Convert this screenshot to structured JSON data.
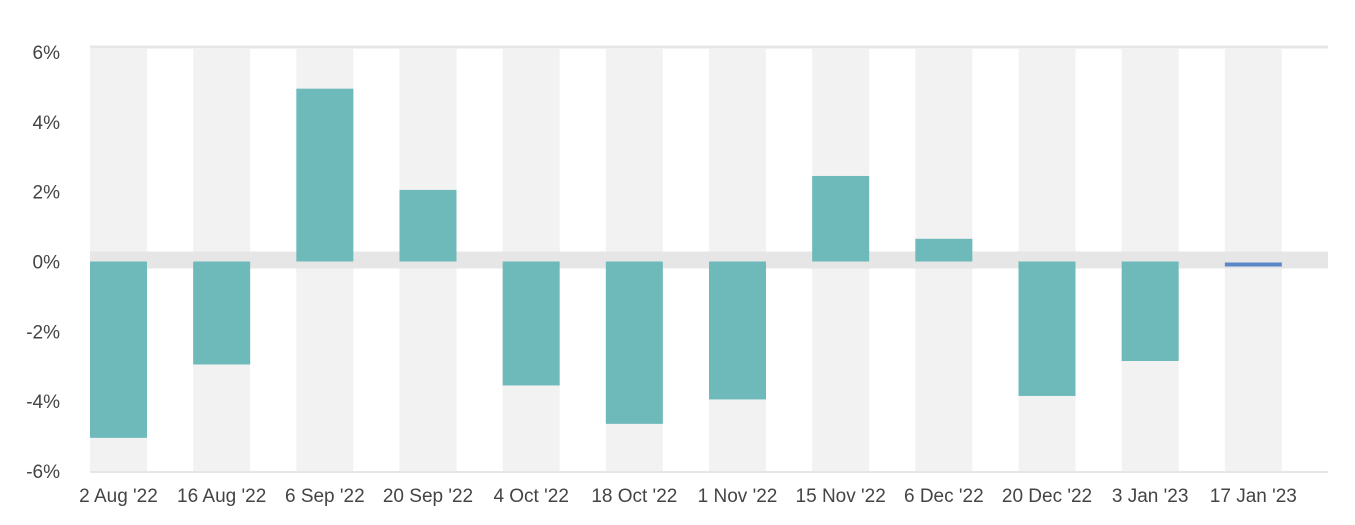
{
  "chart_data": {
    "type": "bar",
    "categories": [
      "2 Aug '22",
      "16 Aug '22",
      "6 Sep '22",
      "20 Sep '22",
      "4 Oct '22",
      "18 Oct '22",
      "1 Nov '22",
      "15 Nov '22",
      "6 Dec '22",
      "20 Dec '22",
      "3 Jan '23",
      "17 Jan '23"
    ],
    "series": [
      {
        "values": [
          -5.05,
          -2.95,
          4.95,
          2.05,
          -3.55,
          -4.65,
          -3.95,
          2.45,
          0.65,
          -3.85,
          -2.85,
          -0.1
        ]
      }
    ],
    "ylim": [
      -6,
      6
    ],
    "yticks": [
      6,
      4,
      2,
      0,
      -2,
      -4,
      -6
    ],
    "ytick_labels": [
      "6%",
      "4%",
      "2%",
      "0%",
      "-2%",
      "-4%",
      "-6%"
    ],
    "title": "",
    "xlabel": "",
    "ylabel": "",
    "grid": false,
    "colors": {
      "bar": "#6eb9ba",
      "last_bar": "#5b86c8",
      "band": "#f2f2f2",
      "zero_band": "#e6e6e6",
      "axis": "#e6e6e6"
    }
  }
}
